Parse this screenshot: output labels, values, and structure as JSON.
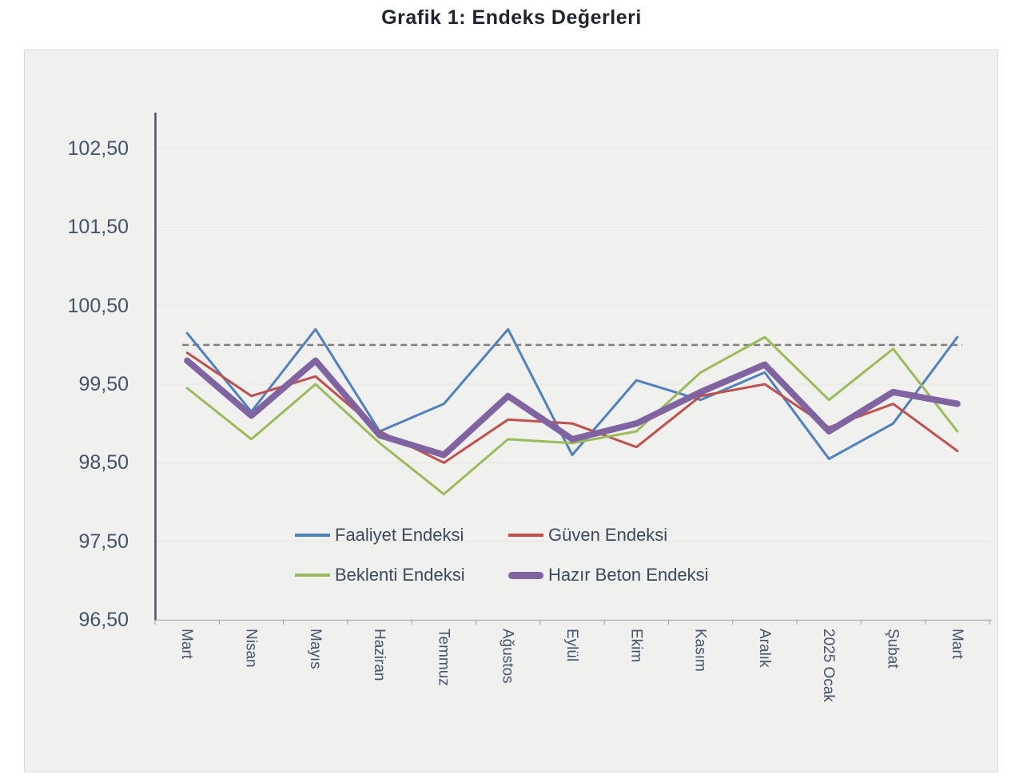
{
  "title": "Grafik 1: Endeks Değerleri",
  "chart_data": {
    "type": "line",
    "categories": [
      "Mart",
      "Nisan",
      "Mayıs",
      "Haziran",
      "Temmuz",
      "Ağustos",
      "Eylül",
      "Ekim",
      "Kasım",
      "Aralık",
      "2025 Ocak",
      "Şubat",
      "Mart"
    ],
    "series": [
      {
        "name": "Faaliyet Endeksi",
        "color": "#4f81bd",
        "line_width": 3,
        "values": [
          100.15,
          99.15,
          100.2,
          98.9,
          99.25,
          100.2,
          98.6,
          99.55,
          99.3,
          99.65,
          98.55,
          99.0,
          100.1
        ]
      },
      {
        "name": "Güven Endeksi",
        "color": "#c0504d",
        "line_width": 3,
        "values": [
          99.9,
          99.35,
          99.6,
          98.9,
          98.5,
          99.05,
          99.0,
          98.7,
          99.35,
          99.5,
          98.95,
          99.25,
          98.65
        ]
      },
      {
        "name": "Beklenti Endeksi",
        "color": "#9bbb59",
        "line_width": 3,
        "values": [
          99.45,
          98.8,
          99.5,
          98.75,
          98.1,
          98.8,
          98.75,
          98.9,
          99.65,
          100.1,
          99.3,
          99.95,
          98.9
        ]
      },
      {
        "name": "Hazır Beton Endeksi",
        "color": "#8064a2",
        "line_width": 8,
        "values": [
          99.8,
          99.1,
          99.8,
          98.85,
          98.6,
          99.35,
          98.8,
          99.0,
          99.4,
          99.75,
          98.9,
          99.4,
          99.25
        ]
      }
    ],
    "reference_line": {
      "value": 100.0,
      "style": "dashed",
      "color": "#7f7f7f"
    },
    "yticks": [
      {
        "value": 102.5,
        "label": "102,50"
      },
      {
        "value": 101.5,
        "label": "101,50"
      },
      {
        "value": 100.5,
        "label": "100,50"
      },
      {
        "value": 99.5,
        "label": "99,50"
      },
      {
        "value": 98.5,
        "label": "98,50"
      },
      {
        "value": 97.5,
        "label": "97,50"
      },
      {
        "value": 96.5,
        "label": "96,50"
      }
    ],
    "ylim": [
      96.5,
      103.0
    ],
    "xlabel": "",
    "ylabel": "",
    "grid": "horizontal",
    "legend_position": "bottom-inside",
    "decimal_separator": ","
  },
  "colors": {
    "panel_background": "#f0f0ee",
    "panel_border": "#d8d8d8",
    "y_axis_line": "#44546a",
    "x_axis_line": "#b7b7b7",
    "gridline": "#e4e4e1",
    "tick": "#9aa0a6",
    "axis_label_text": "#44546a",
    "title_text": "#20242c"
  }
}
